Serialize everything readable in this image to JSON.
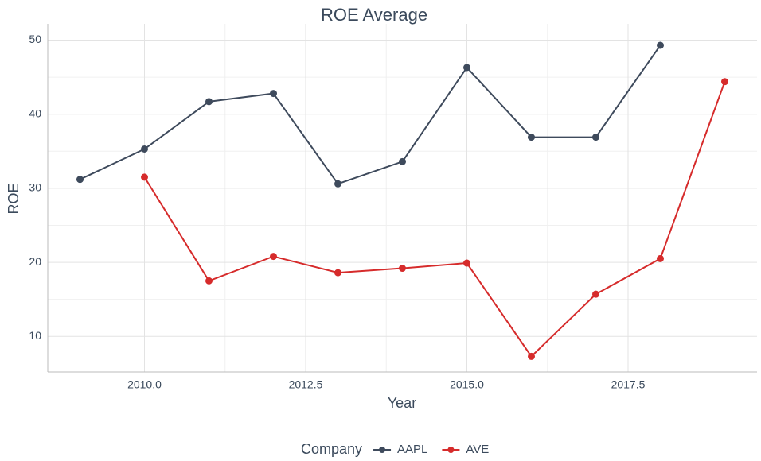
{
  "chart_data": {
    "type": "line",
    "title": "ROE Average",
    "x_label": "Year",
    "y_label": "ROE",
    "x": [
      2009,
      2010,
      2011,
      2012,
      2013,
      2014,
      2015,
      2016,
      2017,
      2018,
      2019
    ],
    "series": [
      {
        "name": "AAPL",
        "color": "#3e4a5c",
        "values": [
          31.2,
          35.3,
          41.7,
          42.8,
          30.6,
          33.6,
          46.3,
          36.9,
          36.9,
          49.3,
          null
        ]
      },
      {
        "name": "AVE",
        "color": "#d62b2b",
        "values": [
          null,
          31.5,
          17.5,
          20.8,
          18.6,
          19.2,
          19.9,
          7.3,
          15.7,
          20.5,
          44.4
        ]
      }
    ],
    "xlim": [
      2008.5,
      2019.5
    ],
    "xticks": [
      {
        "value": 2010,
        "label": "2010.0"
      },
      {
        "value": 2012.5,
        "label": "2012.5"
      },
      {
        "value": 2015,
        "label": "2015.0"
      },
      {
        "value": 2017.5,
        "label": "2017.5"
      }
    ],
    "ylim": [
      5.2,
      52.2
    ],
    "yticks": [
      10,
      20,
      30,
      40,
      50
    ],
    "grid": true,
    "legend_title": "Company",
    "legend_position": "bottom"
  }
}
